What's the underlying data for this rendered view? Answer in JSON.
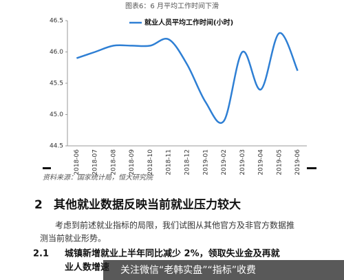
{
  "caption": "图表6：6 月平均工作时间下滑",
  "chart_data": {
    "type": "line",
    "categories": [
      "2018-06",
      "2018-07",
      "2018-08",
      "2018-09",
      "2018-10",
      "2018-11",
      "2018-12",
      "2019-01",
      "2019-02",
      "2019-03",
      "2019-04",
      "2019-05",
      "2019-06"
    ],
    "series": [
      {
        "name": "就业人员平均工作时间(小时)",
        "color": "#2e7fd4",
        "values": [
          45.9,
          46.0,
          46.1,
          46.1,
          46.1,
          46.2,
          45.8,
          45.2,
          44.9,
          46.0,
          45.4,
          46.3,
          45.7
        ]
      }
    ],
    "ylim": [
      44.5,
      46.5
    ],
    "yticks": [
      44.5,
      {
        "value": 45,
        "label": "45.0"
      },
      45.5,
      {
        "value": 46,
        "label": "46.0"
      },
      46.5
    ],
    "legend": "top"
  },
  "source": "资料来源：国家统计局，恒大研究院",
  "section": {
    "number": "2",
    "title": "其他就业数据反映当前就业压力较大"
  },
  "paragraph": [
    "考虑到前述就业指标的局限，我们试图从其他官方及非官方数据推",
    "测当前就业形势。"
  ],
  "subsection": {
    "number": "2.1",
    "title": [
      "城镇新增就业上半年同比减少 2%，领取失业金及再就",
      "业人数增速"
    ]
  },
  "watermark": "关注微信“老韩实盘”“指标”收费"
}
